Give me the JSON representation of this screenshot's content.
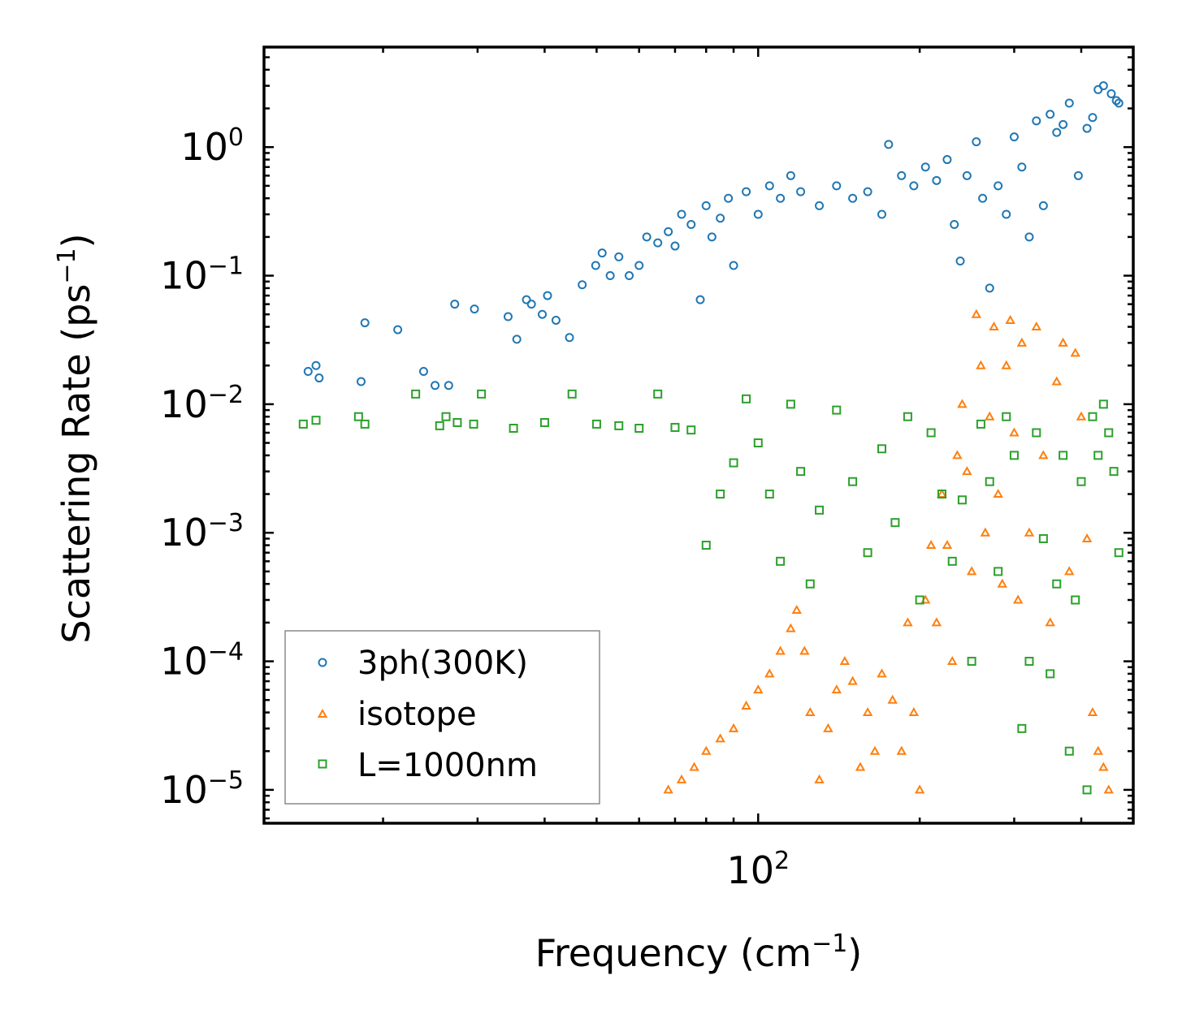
{
  "chart_data": {
    "type": "scatter",
    "xscale": "log",
    "yscale": "log",
    "xlim": [
      12,
      500
    ],
    "ylim": [
      5.5e-06,
      6
    ],
    "xlabel": {
      "main": "Frequency (cm",
      "sup": "−1",
      "tail": ")"
    },
    "ylabel": {
      "main": "Scattering Rate (ps",
      "sup": "−1",
      "tail": ")"
    },
    "x_ticks": [
      {
        "value": 100,
        "base": "10",
        "exp": "2"
      }
    ],
    "y_ticks": [
      {
        "value": 1,
        "base": "10",
        "exp": "0"
      },
      {
        "value": 0.1,
        "base": "10",
        "exp": "−1"
      },
      {
        "value": 0.01,
        "base": "10",
        "exp": "−2"
      },
      {
        "value": 0.001,
        "base": "10",
        "exp": "−3"
      },
      {
        "value": 0.0001,
        "base": "10",
        "exp": "−4"
      },
      {
        "value": 1e-05,
        "base": "10",
        "exp": "−5"
      }
    ],
    "legend": {
      "position": "lower-left"
    },
    "series": [
      {
        "name": "3ph(300K)",
        "marker": "circle",
        "color": "#1f77b4",
        "x": [
          14.5,
          15.2,
          15.0,
          18.2,
          18.5,
          21.3,
          23.8,
          25.0,
          26.5,
          27.2,
          29.6,
          34.2,
          35.5,
          37.0,
          37.8,
          39.6,
          40.5,
          42.0,
          44.5,
          47.0,
          49.8,
          51.2,
          53.0,
          55.0,
          57.5,
          60.0,
          62.0,
          65.0,
          68.0,
          70.0,
          72.0,
          75.0,
          78.0,
          80.0,
          82.0,
          85.0,
          88.0,
          90.0,
          95.0,
          100.0,
          105.0,
          110.0,
          115.0,
          120.0,
          130.0,
          140.0,
          150.0,
          160.0,
          170.0,
          175.0,
          185.0,
          195.0,
          205.0,
          215.0,
          225.0,
          232.0,
          238.0,
          245.0,
          255.0,
          262.0,
          270.0,
          280.0,
          290.0,
          300.0,
          310.0,
          320.0,
          330.0,
          340.0,
          350.0,
          360.0,
          370.0,
          380.0,
          395.0,
          410.0,
          420.0,
          430.0,
          440.0,
          455.0,
          465.0,
          470.0
        ],
        "y": [
          0.018,
          0.016,
          0.02,
          0.015,
          0.043,
          0.038,
          0.018,
          0.014,
          0.014,
          0.06,
          0.055,
          0.048,
          0.032,
          0.065,
          0.06,
          0.05,
          0.07,
          0.045,
          0.033,
          0.085,
          0.12,
          0.15,
          0.1,
          0.14,
          0.1,
          0.12,
          0.2,
          0.18,
          0.22,
          0.17,
          0.3,
          0.25,
          0.065,
          0.35,
          0.2,
          0.28,
          0.4,
          0.12,
          0.45,
          0.3,
          0.5,
          0.4,
          0.6,
          0.45,
          0.35,
          0.5,
          0.4,
          0.45,
          0.3,
          1.05,
          0.6,
          0.5,
          0.7,
          0.55,
          0.8,
          0.25,
          0.13,
          0.6,
          1.1,
          0.4,
          0.08,
          0.5,
          0.3,
          1.2,
          0.7,
          0.2,
          1.6,
          0.35,
          1.8,
          1.3,
          1.5,
          2.2,
          0.6,
          1.4,
          1.7,
          2.8,
          3.0,
          2.6,
          2.3,
          2.2
        ]
      },
      {
        "name": "isotope",
        "marker": "triangle",
        "color": "#ff7f0e",
        "x": [
          68.0,
          72.0,
          76.0,
          80.0,
          85.0,
          90.0,
          95.0,
          100.0,
          105.0,
          110.0,
          115.0,
          118.0,
          122.0,
          125.0,
          130.0,
          135.0,
          140.0,
          145.0,
          150.0,
          155.0,
          160.0,
          165.0,
          170.0,
          178.0,
          185.0,
          190.0,
          195.0,
          200.0,
          205.0,
          210.0,
          215.0,
          220.0,
          225.0,
          230.0,
          235.0,
          240.0,
          245.0,
          250.0,
          255.0,
          260.0,
          265.0,
          270.0,
          275.0,
          280.0,
          285.0,
          290.0,
          295.0,
          300.0,
          305.0,
          310.0,
          320.0,
          330.0,
          340.0,
          350.0,
          360.0,
          370.0,
          380.0,
          390.0,
          400.0,
          410.0,
          420.0,
          430.0,
          440.0,
          450.0
        ],
        "y": [
          1e-05,
          1.2e-05,
          1.5e-05,
          2e-05,
          2.5e-05,
          3e-05,
          4.5e-05,
          6e-05,
          8e-05,
          0.00012,
          0.00018,
          0.00025,
          0.00012,
          4e-05,
          1.2e-05,
          3e-05,
          6e-05,
          0.0001,
          7e-05,
          1.5e-05,
          4e-05,
          2e-05,
          8e-05,
          5e-05,
          2e-05,
          0.0002,
          4e-05,
          1e-05,
          0.0003,
          0.0008,
          0.0002,
          0.002,
          0.0008,
          0.0001,
          0.004,
          0.01,
          0.003,
          0.0005,
          0.05,
          0.02,
          0.001,
          0.008,
          0.04,
          0.002,
          0.0004,
          0.02,
          0.045,
          0.006,
          0.0003,
          0.03,
          0.001,
          0.04,
          0.004,
          0.0002,
          0.015,
          0.03,
          0.0005,
          0.025,
          0.008,
          0.0009,
          4e-05,
          2e-05,
          1.5e-05,
          1e-05
        ]
      },
      {
        "name": "L=1000nm",
        "marker": "square",
        "color": "#2ca02c",
        "x": [
          14.2,
          15.0,
          18.0,
          18.5,
          23.0,
          25.5,
          26.2,
          27.5,
          29.5,
          30.5,
          35.0,
          40.0,
          45.0,
          50.0,
          55.0,
          60.0,
          65.0,
          70.0,
          75.0,
          80.0,
          85.0,
          90.0,
          95.0,
          100.0,
          105.0,
          110.0,
          115.0,
          120.0,
          125.0,
          130.0,
          140.0,
          150.0,
          160.0,
          170.0,
          180.0,
          190.0,
          200.0,
          210.0,
          220.0,
          230.0,
          240.0,
          250.0,
          260.0,
          270.0,
          280.0,
          290.0,
          300.0,
          310.0,
          320.0,
          330.0,
          340.0,
          350.0,
          360.0,
          370.0,
          380.0,
          390.0,
          400.0,
          410.0,
          420.0,
          430.0,
          440.0,
          450.0,
          460.0,
          470.0
        ],
        "y": [
          0.007,
          0.0075,
          0.008,
          0.007,
          0.012,
          0.0068,
          0.008,
          0.0072,
          0.007,
          0.012,
          0.0065,
          0.0072,
          0.012,
          0.007,
          0.0068,
          0.0065,
          0.012,
          0.0066,
          0.0063,
          0.0008,
          0.002,
          0.0035,
          0.011,
          0.005,
          0.002,
          0.0006,
          0.01,
          0.003,
          0.0004,
          0.0015,
          0.009,
          0.0025,
          0.0007,
          0.0045,
          0.0012,
          0.008,
          0.0003,
          0.006,
          0.002,
          0.0006,
          0.0018,
          0.0001,
          0.007,
          0.0025,
          0.0005,
          0.008,
          0.004,
          3e-05,
          0.0001,
          0.006,
          0.0009,
          8e-05,
          0.0004,
          0.004,
          2e-05,
          0.0003,
          0.0025,
          1e-05,
          0.008,
          0.004,
          0.01,
          0.006,
          0.003,
          0.0007
        ]
      }
    ]
  }
}
